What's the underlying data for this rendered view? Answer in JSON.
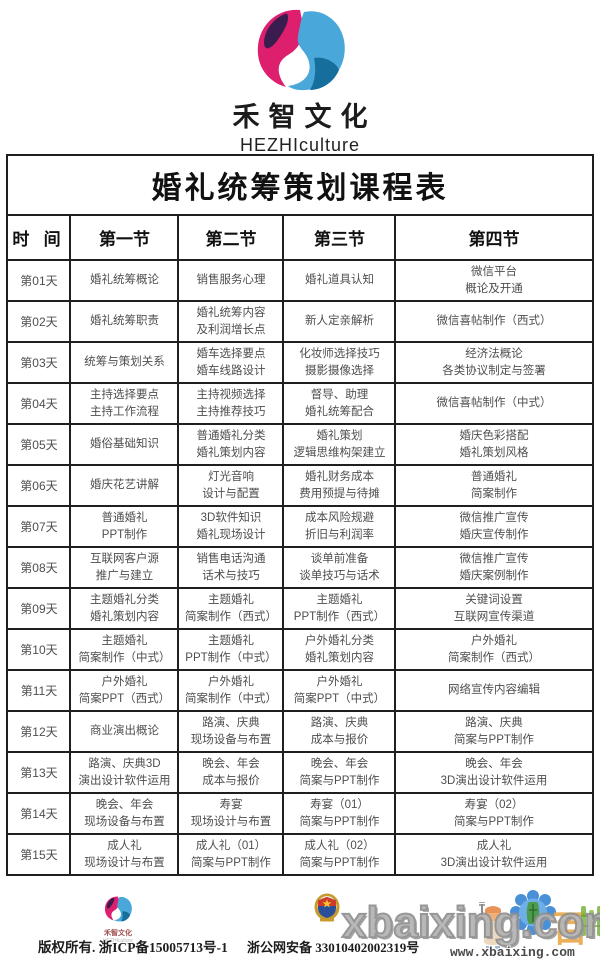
{
  "brand": {
    "name": "禾智文化",
    "name_en": "HEZHIculture",
    "colors": {
      "pink": "#DD1F6E",
      "purple": "#3A1C4E",
      "light_blue": "#4AA7DA",
      "teal": "#156E9C"
    }
  },
  "table": {
    "title": "婚礼统筹策划课程表",
    "headers": [
      "时 间",
      "第一节",
      "第二节",
      "第三节",
      "第四节"
    ],
    "rows": [
      {
        "day": "第01天",
        "cells": [
          "婚礼统筹概论",
          "销售服务心理",
          "婚礼道具认知",
          "微信平台\n概论及开通"
        ]
      },
      {
        "day": "第02天",
        "cells": [
          "婚礼统筹职责",
          "婚礼统筹内容\n及利润增长点",
          "新人定亲解析",
          "微信喜帖制作（西式）"
        ]
      },
      {
        "day": "第03天",
        "cells": [
          "统筹与策划关系",
          "婚车选择要点\n婚车线路设计",
          "化妆师选择技巧\n摄影摄像选择",
          "经济法概论\n各类协议制定与签署"
        ]
      },
      {
        "day": "第04天",
        "cells": [
          "主持选择要点\n主持工作流程",
          "主持视频选择\n主持推荐技巧",
          "督导、助理\n婚礼统筹配合",
          "微信喜帖制作（中式）"
        ]
      },
      {
        "day": "第05天",
        "cells": [
          "婚俗基础知识",
          "普通婚礼分类\n婚礼策划内容",
          "婚礼策划\n逻辑思维构架建立",
          "婚庆色彩搭配\n婚礼策划风格"
        ]
      },
      {
        "day": "第06天",
        "cells": [
          "婚庆花艺讲解",
          "灯光音响\n设计与配置",
          "婚礼财务成本\n费用预提与待摊",
          "普通婚礼\n简案制作"
        ]
      },
      {
        "day": "第07天",
        "cells": [
          "普通婚礼\nPPT制作",
          "3D软件知识\n婚礼现场设计",
          "成本风险规避\n折旧与利润率",
          "微信推广宣传\n婚庆宣传制作"
        ]
      },
      {
        "day": "第08天",
        "cells": [
          "互联网客户源\n推广与建立",
          "销售电话沟通\n话术与技巧",
          "谈单前准备\n谈单技巧与话术",
          "微信推广宣传\n婚庆案例制作"
        ]
      },
      {
        "day": "第09天",
        "cells": [
          "主题婚礼分类\n婚礼策划内容",
          "主题婚礼\n简案制作（西式）",
          "主题婚礼\nPPT制作（西式）",
          "关键词设置\n互联网宣传渠道"
        ]
      },
      {
        "day": "第10天",
        "cells": [
          "主题婚礼\n简案制作（中式）",
          "主题婚礼\nPPT制作（中式）",
          "户外婚礼分类\n婚礼策划内容",
          "户外婚礼\n简案制作（西式）"
        ]
      },
      {
        "day": "第11天",
        "cells": [
          "户外婚礼\n简案PPT（西式）",
          "户外婚礼\n简案制作（中式）",
          "户外婚礼\n简案PPT（中式）",
          "网络宣传内容编辑"
        ]
      },
      {
        "day": "第12天",
        "cells": [
          "商业演出概论",
          "路演、庆典\n现场设备与布置",
          "路演、庆典\n成本与报价",
          "路演、庆典\n简案与PPT制作"
        ]
      },
      {
        "day": "第13天",
        "cells": [
          "路演、庆典3D\n演出设计软件运用",
          "晚会、年会\n成本与报价",
          "晚会、年会\n简案与PPT制作",
          "晚会、年会\n3D演出设计软件运用"
        ]
      },
      {
        "day": "第14天",
        "cells": [
          "晚会、年会\n现场设备与布置",
          "寿宴\n现场设计与布置",
          "寿宴（01）\n简案与PPT制作",
          "寿宴（02）\n简案与PPT制作"
        ]
      },
      {
        "day": "第15天",
        "cells": [
          "成人礼\n现场设计与布置",
          "成人礼（01）\n简案与PPT制作",
          "成人礼（02）\n简案与PPT制作",
          "成人礼\n3D演出设计软件运用"
        ]
      }
    ]
  },
  "footer": {
    "brand_name": "禾智文化",
    "brand_name_en": "HEZHIculture",
    "copyright": "版权所有. 浙ICP备15005713号-1",
    "police_label": "浙公网安备 33010402002319号",
    "watermark": "xbaixing.com",
    "watermark_url": "www.xbaixing.com",
    "mascot_char": "百"
  }
}
